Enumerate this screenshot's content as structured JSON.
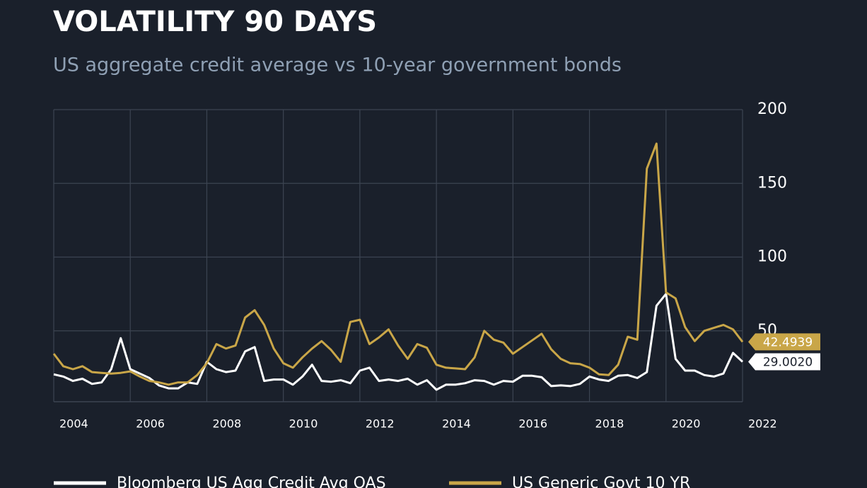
{
  "chart_data": {
    "type": "line",
    "title": "VOLATILITY 90 DAYS",
    "subtitle": "US aggregate credit average vs 10-year government bonds",
    "x": [
      2004,
      2004.25,
      2004.5,
      2004.75,
      2005,
      2005.25,
      2005.5,
      2005.75,
      2006,
      2006.25,
      2006.5,
      2006.75,
      2007,
      2007.25,
      2007.5,
      2007.75,
      2008,
      2008.25,
      2008.5,
      2008.75,
      2009,
      2009.25,
      2009.5,
      2009.75,
      2010,
      2010.25,
      2010.5,
      2010.75,
      2011,
      2011.25,
      2011.5,
      2011.75,
      2012,
      2012.25,
      2012.5,
      2012.75,
      2013,
      2013.25,
      2013.5,
      2013.75,
      2014,
      2014.25,
      2014.5,
      2014.75,
      2015,
      2015.25,
      2015.5,
      2015.75,
      2016,
      2016.25,
      2016.5,
      2016.75,
      2017,
      2017.25,
      2017.5,
      2017.75,
      2018,
      2018.25,
      2018.5,
      2018.75,
      2019,
      2019.25,
      2019.5,
      2019.75,
      2020,
      2020.25,
      2020.5,
      2020.75,
      2021,
      2021.25,
      2021.5,
      2021.75,
      2022
    ],
    "xlim": [
      2004,
      2022
    ],
    "xticks": [
      2004,
      2006,
      2008,
      2010,
      2012,
      2014,
      2016,
      2018,
      2020,
      2022
    ],
    "ylim": [
      0,
      200
    ],
    "yticks": [
      50,
      100,
      150,
      200
    ],
    "grid": true,
    "series": [
      {
        "name": "Bloomberg US Agg Credit Avg OAS",
        "color": "#ffffff",
        "values": [
          20.5,
          19,
          16,
          17.5,
          14,
          15,
          24,
          45,
          24,
          21,
          18,
          13,
          11,
          11,
          15,
          14,
          29,
          24,
          22,
          23,
          36,
          39,
          16,
          17,
          17,
          13.5,
          19,
          27,
          16,
          15.5,
          16.5,
          14.5,
          23,
          25,
          16,
          17,
          16,
          17.5,
          13.5,
          16.5,
          10,
          13.5,
          13.5,
          14.5,
          16.5,
          16,
          13.5,
          16,
          15.5,
          19.5,
          19.5,
          18.5,
          12.5,
          13,
          12.5,
          14,
          19,
          17,
          16,
          19.5,
          20,
          18,
          22,
          67,
          75,
          31,
          23,
          23,
          20,
          19,
          21,
          35,
          29.002
        ],
        "value_labels": [
          null,
          null,
          null,
          null,
          null,
          null,
          null,
          null,
          null,
          null,
          null,
          null,
          null,
          null,
          null,
          null,
          null,
          null,
          null,
          null,
          null,
          null,
          null,
          null,
          null,
          null,
          null,
          null,
          null,
          null,
          null,
          null,
          null,
          null,
          null,
          null,
          null,
          null,
          null,
          null,
          null,
          null,
          null,
          null,
          null,
          null,
          null,
          null,
          null,
          null,
          null,
          null,
          null,
          null,
          null,
          null,
          null,
          null,
          null,
          null,
          null,
          null,
          null,
          null,
          null,
          null,
          null,
          null,
          null,
          null,
          null,
          null,
          "29.0020"
        ]
      },
      {
        "name": "US Generic Govt 10 YR",
        "color": "#c9a648",
        "values": [
          34.5,
          26,
          24,
          26,
          22,
          21.5,
          21,
          21.5,
          22.5,
          19,
          16,
          15,
          13.5,
          15,
          15,
          20,
          28,
          41,
          38,
          40,
          59,
          64,
          54,
          38,
          28,
          25,
          32,
          38,
          43,
          37,
          29,
          56,
          57.5,
          41,
          45.5,
          51,
          40,
          31,
          41,
          38.5,
          27,
          25,
          24.5,
          24,
          32,
          50,
          44,
          42,
          34.5,
          39,
          43.5,
          48,
          37.5,
          31,
          28,
          27.5,
          25,
          20.5,
          20,
          27,
          46,
          44,
          160,
          177,
          76,
          72,
          52.5,
          43,
          50,
          52,
          54,
          51,
          42.4939
        ],
        "value_labels": [
          null,
          null,
          null,
          null,
          null,
          null,
          null,
          null,
          null,
          null,
          null,
          null,
          null,
          null,
          null,
          null,
          null,
          null,
          null,
          null,
          null,
          null,
          null,
          null,
          null,
          null,
          null,
          null,
          null,
          null,
          null,
          null,
          null,
          null,
          null,
          null,
          null,
          null,
          null,
          null,
          null,
          null,
          null,
          null,
          null,
          null,
          null,
          null,
          null,
          null,
          null,
          null,
          null,
          null,
          null,
          null,
          null,
          null,
          null,
          null,
          null,
          null,
          null,
          null,
          null,
          null,
          null,
          null,
          null,
          null,
          null,
          null,
          "42.4939"
        ]
      }
    ]
  }
}
